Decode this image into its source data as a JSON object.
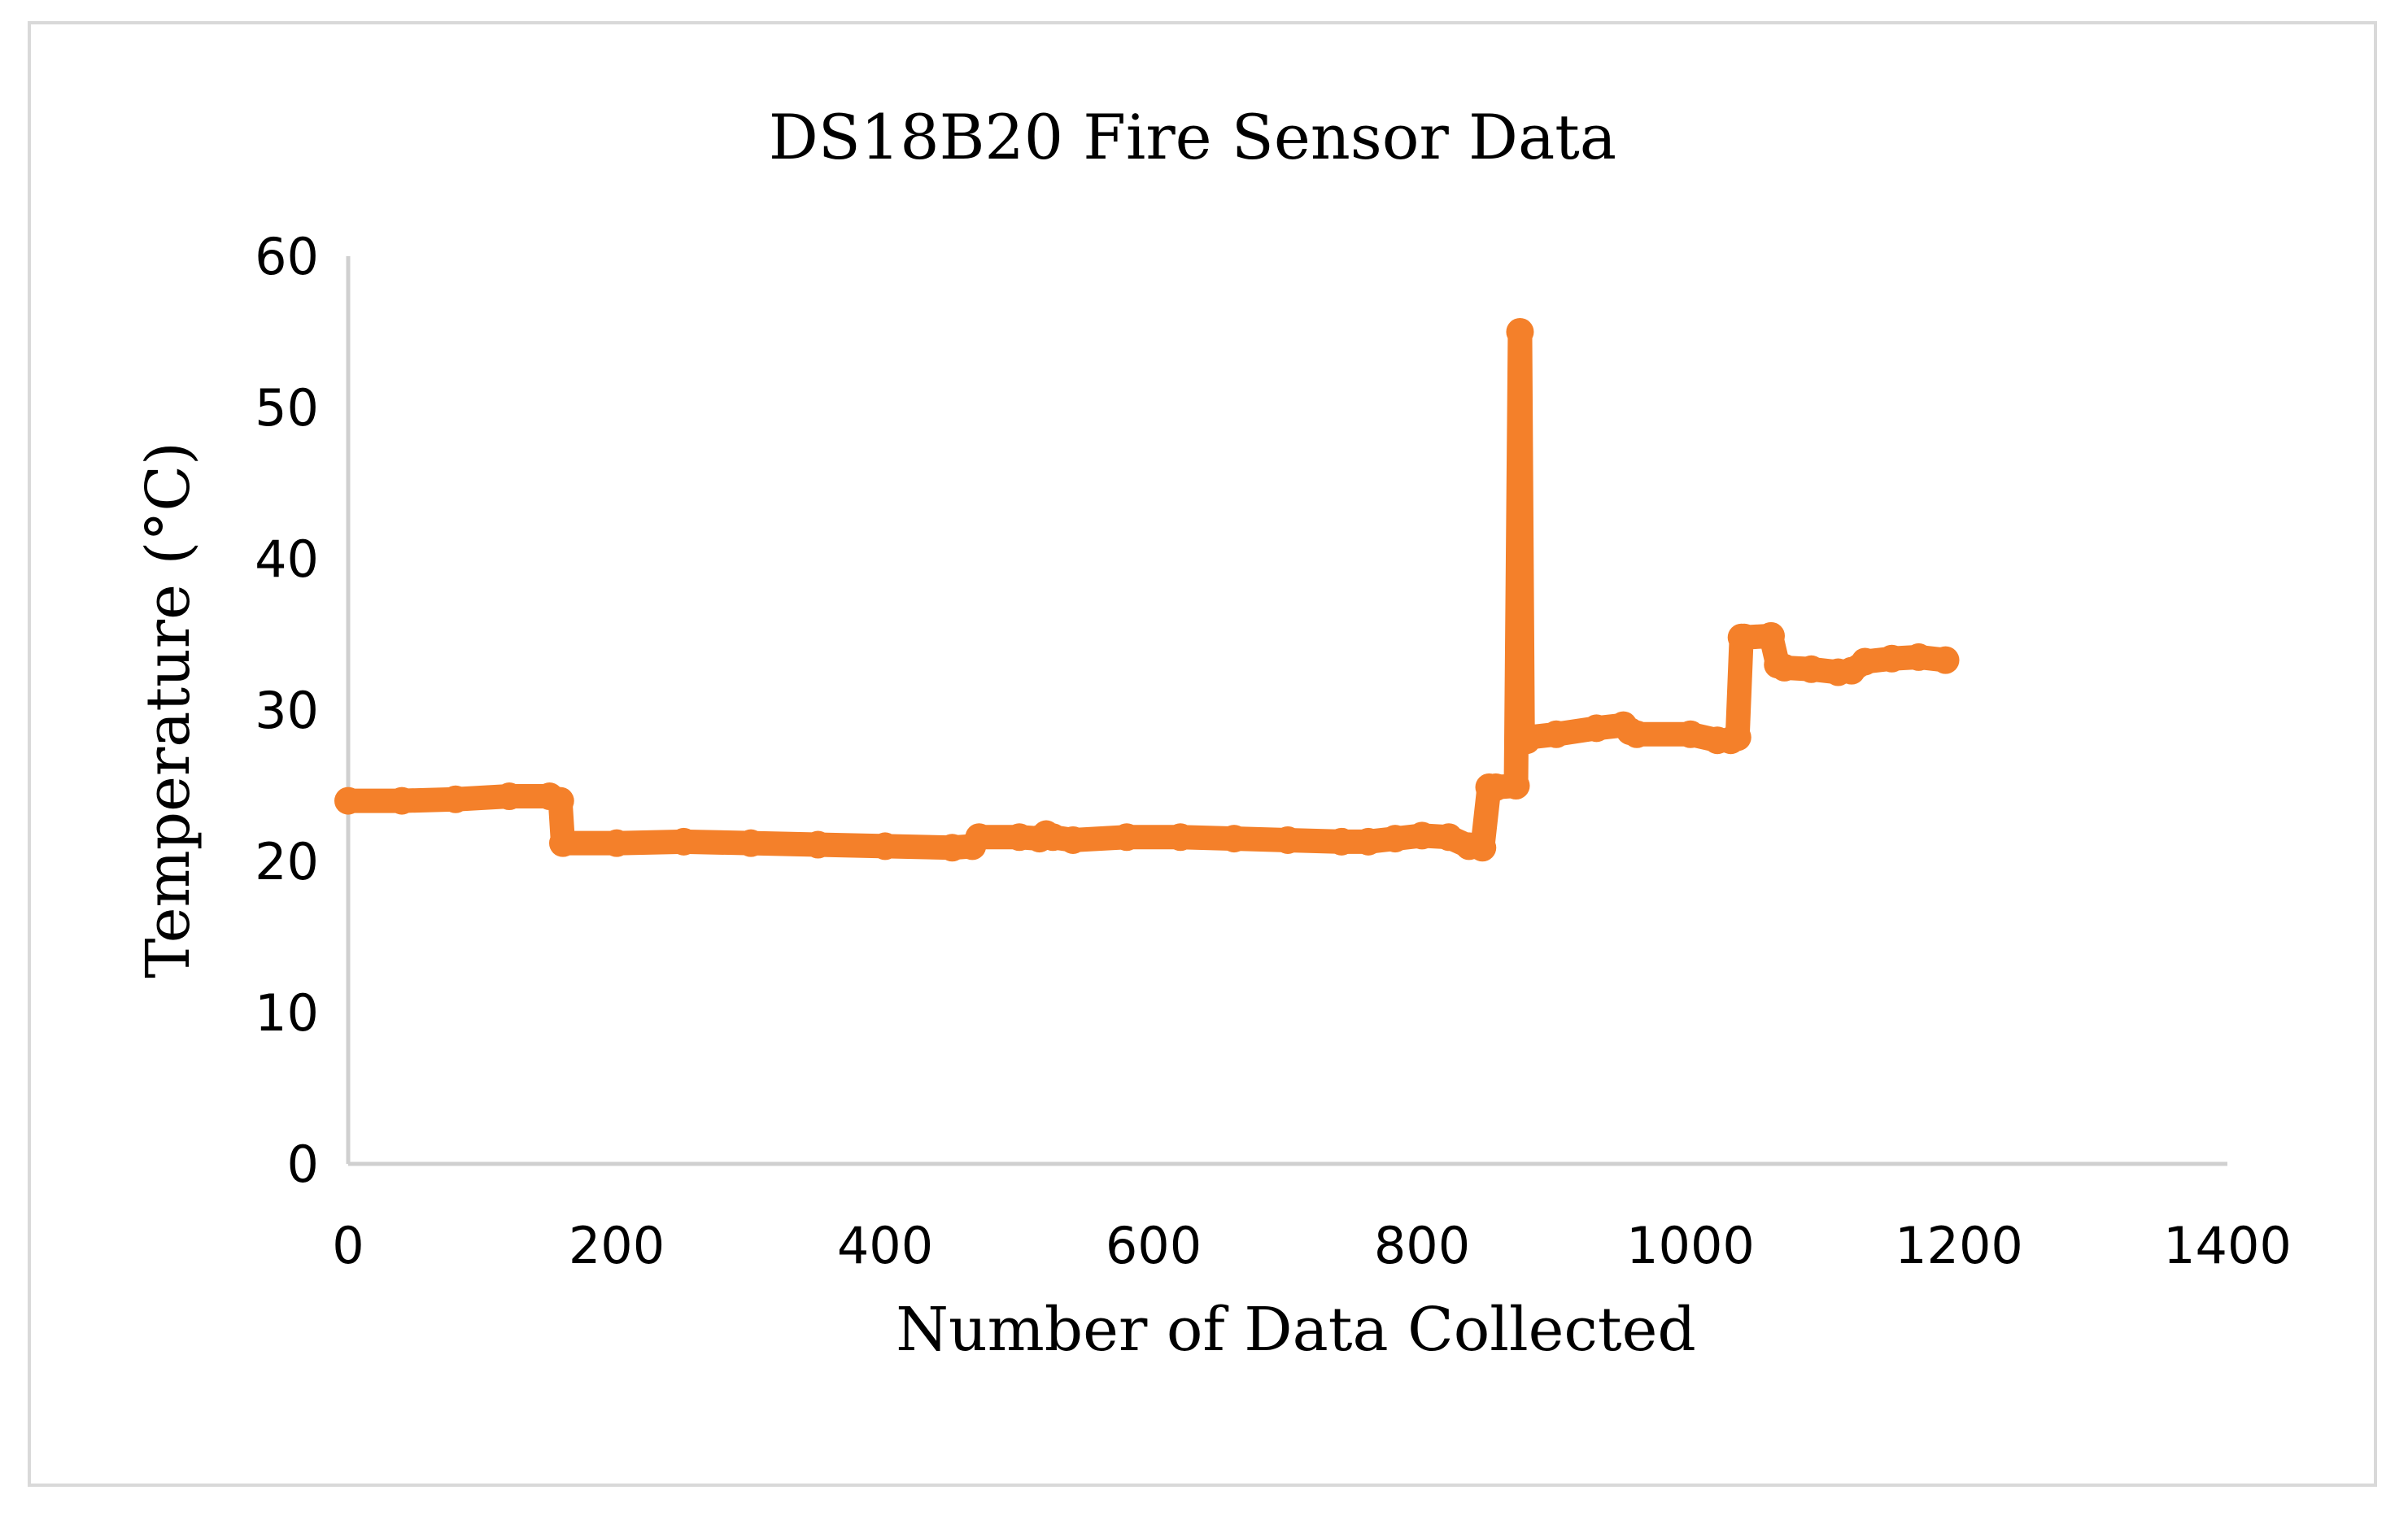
{
  "chart_data": {
    "type": "line",
    "title": "DS18B20 Fire Sensor Data",
    "xlabel": "Number of Data Collected",
    "ylabel": "Temperature (°C)",
    "xlim": [
      0,
      1400
    ],
    "ylim": [
      0,
      60
    ],
    "xticks": [
      "0",
      "200",
      "400",
      "600",
      "800",
      "1000",
      "1200",
      "1400"
    ],
    "yticks": [
      "0",
      "10",
      "20",
      "30",
      "40",
      "50",
      "60"
    ],
    "grid": false,
    "markers": true,
    "series": [
      {
        "color": "#f4802a",
        "x": [
          0,
          40,
          80,
          120,
          150,
          158,
          160,
          200,
          250,
          300,
          350,
          400,
          450,
          465,
          470,
          500,
          515,
          520,
          525,
          540,
          580,
          620,
          660,
          700,
          740,
          760,
          780,
          800,
          820,
          835,
          845,
          850,
          855,
          870,
          873,
          875,
          878,
          880,
          900,
          930,
          950,
          955,
          960,
          1000,
          1020,
          1030,
          1035,
          1038,
          1040,
          1060,
          1065,
          1070,
          1090,
          1110,
          1120,
          1130,
          1150,
          1170,
          1190
        ],
        "y": [
          24,
          24,
          24.1,
          24.3,
          24.3,
          24.0,
          21.2,
          21.2,
          21.3,
          21.2,
          21.1,
          21.0,
          20.9,
          21.0,
          21.6,
          21.6,
          21.5,
          21.8,
          21.6,
          21.4,
          21.6,
          21.6,
          21.5,
          21.4,
          21.3,
          21.3,
          21.5,
          21.7,
          21.6,
          21.0,
          20.9,
          24.9,
          24.9,
          25.0,
          55.0,
          28.2,
          28.0,
          28.2,
          28.4,
          28.8,
          29.0,
          28.6,
          28.4,
          28.4,
          28.0,
          28.0,
          28.2,
          34.8,
          34.8,
          34.9,
          33.0,
          32.8,
          32.7,
          32.5,
          32.6,
          33.2,
          33.4,
          33.5,
          33.3
        ]
      }
    ]
  }
}
